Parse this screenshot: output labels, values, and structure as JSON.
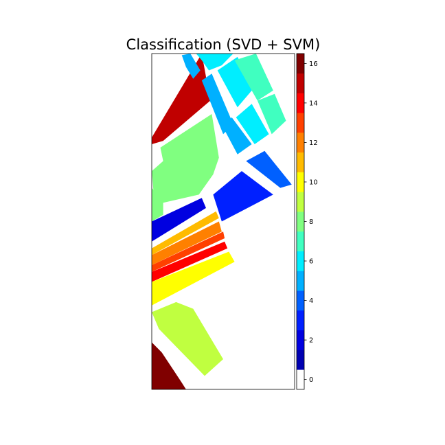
{
  "chart_data": {
    "type": "heatmap",
    "title": "Classification (SVD + SVM)",
    "xlabel": "",
    "ylabel": "",
    "colorbar": {
      "ticks": [
        0,
        2,
        4,
        6,
        8,
        10,
        12,
        14,
        16
      ],
      "range": [
        -0.5,
        16.5
      ],
      "classes": [
        {
          "value": 0,
          "color": "#ffffff"
        },
        {
          "value": 1,
          "color": "#0000b2"
        },
        {
          "value": 2,
          "color": "#0000e0"
        },
        {
          "value": 3,
          "color": "#0020ff"
        },
        {
          "value": 4,
          "color": "#0060ff"
        },
        {
          "value": 5,
          "color": "#00b0ff"
        },
        {
          "value": 6,
          "color": "#00eeff"
        },
        {
          "value": 7,
          "color": "#40ffc0"
        },
        {
          "value": 8,
          "color": "#80ff80"
        },
        {
          "value": 9,
          "color": "#c0ff40"
        },
        {
          "value": 10,
          "color": "#ffff00"
        },
        {
          "value": 11,
          "color": "#ffbb00"
        },
        {
          "value": 12,
          "color": "#ff8000"
        },
        {
          "value": 13,
          "color": "#ff4000"
        },
        {
          "value": 14,
          "color": "#ff0000"
        },
        {
          "value": 15,
          "color": "#c00000"
        },
        {
          "value": 16,
          "color": "#800000"
        }
      ]
    },
    "regions": [
      {
        "class": 15,
        "points": [
          [
            0,
            0.25
          ],
          [
            0.35,
            0
          ],
          [
            0.41,
            0.14
          ],
          [
            0.08,
            0.26
          ],
          [
            0,
            0.27
          ]
        ]
      },
      {
        "class": 8,
        "points": [
          [
            0.06,
            0.28
          ],
          [
            0.42,
            0.18
          ],
          [
            0.47,
            0.31
          ],
          [
            0.43,
            0.36
          ],
          [
            0.33,
            0.42
          ],
          [
            0.02,
            0.45
          ],
          [
            0,
            0.35
          ],
          [
            0.08,
            0.32
          ]
        ]
      },
      {
        "class": 8,
        "points": [
          [
            0,
            0.4
          ],
          [
            0.08,
            0.44
          ],
          [
            0.08,
            0.48
          ],
          [
            0,
            0.5
          ]
        ]
      },
      {
        "class": 5,
        "points": [
          [
            0.21,
            0.005
          ],
          [
            0.27,
            0
          ],
          [
            0.34,
            0.05
          ],
          [
            0.29,
            0.075
          ],
          [
            0.24,
            0.04
          ]
        ]
      },
      {
        "class": 6,
        "points": [
          [
            0.31,
            0
          ],
          [
            0.57,
            0
          ],
          [
            0.49,
            0.035
          ],
          [
            0.4,
            0.05
          ],
          [
            0.35,
            0.02
          ]
        ]
      },
      {
        "class": 5,
        "points": [
          [
            0.35,
            0.08
          ],
          [
            0.42,
            0.06
          ],
          [
            0.57,
            0.21
          ],
          [
            0.5,
            0.24
          ]
        ]
      },
      {
        "class": 6,
        "points": [
          [
            0.46,
            0.05
          ],
          [
            0.6,
            0.01
          ],
          [
            0.72,
            0.1
          ],
          [
            0.6,
            0.16
          ]
        ]
      },
      {
        "class": 7,
        "points": [
          [
            0.58,
            0.02
          ],
          [
            0.73,
            0.0
          ],
          [
            0.85,
            0.11
          ],
          [
            0.74,
            0.14
          ]
        ]
      },
      {
        "class": 5,
        "points": [
          [
            0.5,
            0.22
          ],
          [
            0.56,
            0.19
          ],
          [
            0.7,
            0.27
          ],
          [
            0.6,
            0.3
          ]
        ]
      },
      {
        "class": 6,
        "points": [
          [
            0.59,
            0.19
          ],
          [
            0.7,
            0.15
          ],
          [
            0.82,
            0.24
          ],
          [
            0.72,
            0.27
          ]
        ]
      },
      {
        "class": 7,
        "points": [
          [
            0.74,
            0.14
          ],
          [
            0.86,
            0.12
          ],
          [
            0.94,
            0.2
          ],
          [
            0.84,
            0.24
          ]
        ]
      },
      {
        "class": 4,
        "points": [
          [
            0.66,
            0.32
          ],
          [
            0.79,
            0.29
          ],
          [
            0.98,
            0.39
          ],
          [
            0.9,
            0.4
          ]
        ]
      },
      {
        "class": 3,
        "points": [
          [
            0.43,
            0.42
          ],
          [
            0.63,
            0.35
          ],
          [
            0.85,
            0.42
          ],
          [
            0.49,
            0.5
          ]
        ]
      },
      {
        "class": 2,
        "points": [
          [
            0,
            0.5
          ],
          [
            0.35,
            0.43
          ],
          [
            0.38,
            0.46
          ],
          [
            0,
            0.56
          ]
        ]
      },
      {
        "class": 11,
        "points": [
          [
            0,
            0.58
          ],
          [
            0.45,
            0.47
          ],
          [
            0.47,
            0.49
          ],
          [
            0,
            0.6
          ]
        ]
      },
      {
        "class": 12,
        "points": [
          [
            0,
            0.6
          ],
          [
            0.47,
            0.5
          ],
          [
            0.49,
            0.53
          ],
          [
            0,
            0.63
          ]
        ]
      },
      {
        "class": 13,
        "points": [
          [
            0,
            0.63
          ],
          [
            0.5,
            0.53
          ],
          [
            0.51,
            0.55
          ],
          [
            0,
            0.65
          ]
        ]
      },
      {
        "class": 14,
        "points": [
          [
            0,
            0.65
          ],
          [
            0.51,
            0.56
          ],
          [
            0.53,
            0.58
          ],
          [
            0,
            0.68
          ]
        ]
      },
      {
        "class": 10,
        "points": [
          [
            0,
            0.68
          ],
          [
            0.54,
            0.59
          ],
          [
            0.58,
            0.62
          ],
          [
            0,
            0.75
          ]
        ]
      },
      {
        "class": 9,
        "points": [
          [
            0,
            0.77
          ],
          [
            0.17,
            0.74
          ],
          [
            0.29,
            0.76
          ],
          [
            0.5,
            0.91
          ],
          [
            0.37,
            0.96
          ],
          [
            0.05,
            0.82
          ]
        ]
      },
      {
        "class": 16,
        "points": [
          [
            0,
            0.86
          ],
          [
            0.07,
            0.89
          ],
          [
            0.21,
            0.98
          ],
          [
            0.24,
            1
          ],
          [
            0,
            1
          ]
        ]
      }
    ]
  }
}
